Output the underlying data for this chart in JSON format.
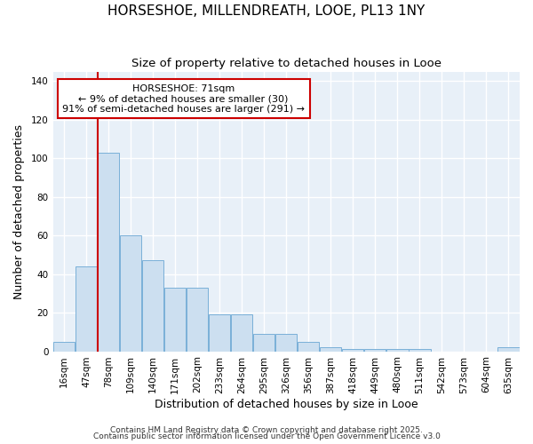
{
  "title": "HORSESHOE, MILLENDREATH, LOOE, PL13 1NY",
  "subtitle": "Size of property relative to detached houses in Looe",
  "xlabel": "Distribution of detached houses by size in Looe",
  "ylabel": "Number of detached properties",
  "categories": [
    "16sqm",
    "47sqm",
    "78sqm",
    "109sqm",
    "140sqm",
    "171sqm",
    "202sqm",
    "233sqm",
    "264sqm",
    "295sqm",
    "326sqm",
    "356sqm",
    "387sqm",
    "418sqm",
    "449sqm",
    "480sqm",
    "511sqm",
    "542sqm",
    "573sqm",
    "604sqm",
    "635sqm"
  ],
  "values": [
    5,
    44,
    103,
    60,
    47,
    33,
    33,
    19,
    19,
    9,
    9,
    5,
    2,
    1,
    1,
    1,
    1,
    0,
    0,
    0,
    2
  ],
  "bar_color": "#ccdff0",
  "bar_edge_color": "#7ab0d8",
  "annotation_text_line1": "HORSESHOE: 71sqm",
  "annotation_text_line2": "← 9% of detached houses are smaller (30)",
  "annotation_text_line3": "91% of semi-detached houses are larger (291) →",
  "vline_x": 1.5,
  "ylim": [
    0,
    145
  ],
  "yticks": [
    0,
    20,
    40,
    60,
    80,
    100,
    120,
    140
  ],
  "plot_bg_color": "#e8f0f8",
  "grid_color": "#ffffff",
  "annotation_box_edge_color": "#cc0000",
  "vline_color": "#cc0000",
  "title_fontsize": 11,
  "subtitle_fontsize": 9.5,
  "axis_label_fontsize": 9,
  "tick_fontsize": 7.5,
  "annotation_fontsize": 8,
  "footer_fontsize": 6.5,
  "footer_line1": "Contains HM Land Registry data © Crown copyright and database right 2025.",
  "footer_line2": "Contains public sector information licensed under the Open Government Licence v3.0"
}
